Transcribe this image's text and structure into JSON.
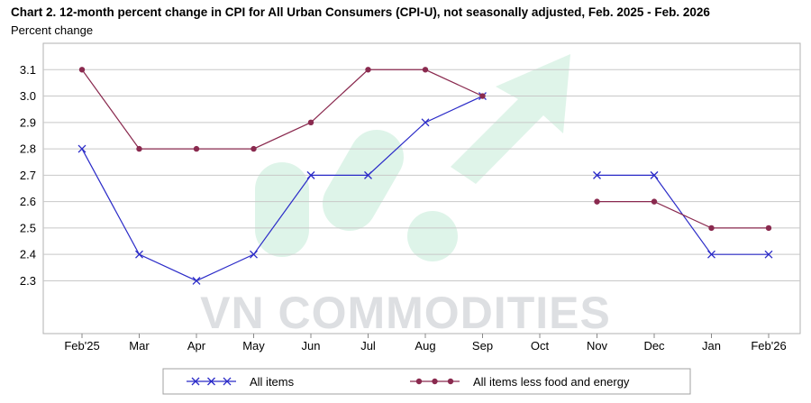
{
  "chart_data": {
    "type": "line",
    "title": "Chart 2. 12-month percent change in CPI for All Urban Consumers (CPI-U), not seasonally adjusted, Feb. 2025 - Feb. 2026",
    "ylabel": "Percent change",
    "xlabel": "",
    "categories": [
      "Feb'25",
      "Mar",
      "Apr",
      "May",
      "Jun",
      "Jul",
      "Aug",
      "Sep",
      "Oct",
      "Nov",
      "Dec",
      "Jan",
      "Feb'26"
    ],
    "ylim": [
      2.1,
      3.2
    ],
    "yticks": [
      2.3,
      2.4,
      2.5,
      2.6,
      2.7,
      2.8,
      2.9,
      3.0,
      3.1
    ],
    "ytick_labels": [
      "2.3",
      "2.4",
      "2.5",
      "2.6",
      "2.7",
      "2.8",
      "2.9",
      "3.0",
      "3.1"
    ],
    "grid": true,
    "legend_position": "bottom",
    "series": [
      {
        "name": "All items",
        "color": "#2b2bc8",
        "marker": "x",
        "values": [
          2.8,
          2.4,
          2.3,
          2.4,
          2.7,
          2.7,
          2.9,
          3.0,
          null,
          2.7,
          2.7,
          2.4,
          2.4
        ]
      },
      {
        "name": "All items less food and energy",
        "color": "#8a2a4f",
        "marker": "dot",
        "values": [
          3.1,
          2.8,
          2.8,
          2.8,
          2.9,
          3.1,
          3.1,
          3.0,
          null,
          2.6,
          2.6,
          2.5,
          2.5
        ]
      }
    ]
  },
  "watermark": {
    "text": "VN COMMODITIES",
    "color": "#d8dadd",
    "accent": "#b9e8cf"
  }
}
